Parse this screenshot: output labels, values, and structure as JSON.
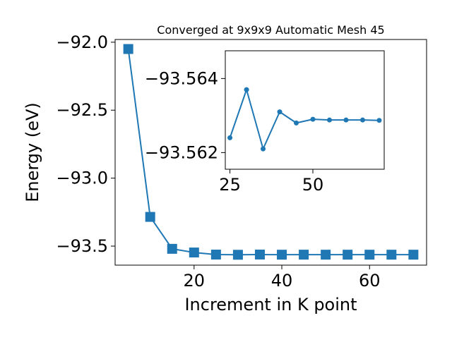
{
  "chart_data": [
    {
      "type": "line",
      "title": "Converged at 9x9x9 Automatic Mesh 45",
      "xlabel": "Increment in K point",
      "ylabel": "Energy (eV)",
      "xlim": [
        2,
        73
      ],
      "ylim": [
        -93.64,
        -91.98
      ],
      "xticks": [
        20,
        40,
        60
      ],
      "xtick_labels": [
        "20",
        "40",
        "60"
      ],
      "yticks": [
        -92.0,
        -92.5,
        -93.0,
        -93.5
      ],
      "ytick_labels": [
        "−92.0",
        "−92.5",
        "−93.0",
        "−93.5"
      ],
      "grid": false,
      "marker": "square",
      "color": "#1f77b4",
      "series": [
        {
          "x": [
            5,
            10,
            15,
            20,
            25,
            30,
            35,
            40,
            45,
            50,
            55,
            60,
            65,
            70
          ],
          "y": [
            -92.05,
            -93.285,
            -93.52,
            -93.547,
            -93.5624,
            -93.5637,
            -93.5621,
            -93.5631,
            -93.5628,
            -93.563,
            -93.563,
            -93.563,
            -93.563,
            -93.563
          ]
        }
      ]
    },
    {
      "type": "line",
      "title": "",
      "xlabel": "",
      "ylabel": "",
      "xlim": [
        23.6,
        71.5
      ],
      "ylim": [
        -93.56155,
        -93.56475
      ],
      "xticks": [
        25,
        50
      ],
      "xtick_labels": [
        "25",
        "50"
      ],
      "yticks": [
        -93.564,
        -93.562
      ],
      "ytick_labels": [
        "−93.564",
        "−93.562"
      ],
      "grid": false,
      "marker": "circle",
      "color": "#1f77b4",
      "series": [
        {
          "x": [
            25,
            30,
            35,
            40,
            45,
            50,
            55,
            60,
            65,
            70
          ],
          "y": [
            -93.5624,
            -93.5637,
            -93.5621,
            -93.5631,
            -93.5628,
            -93.5629,
            -93.56288,
            -93.56288,
            -93.56288,
            -93.56287
          ]
        }
      ]
    }
  ]
}
